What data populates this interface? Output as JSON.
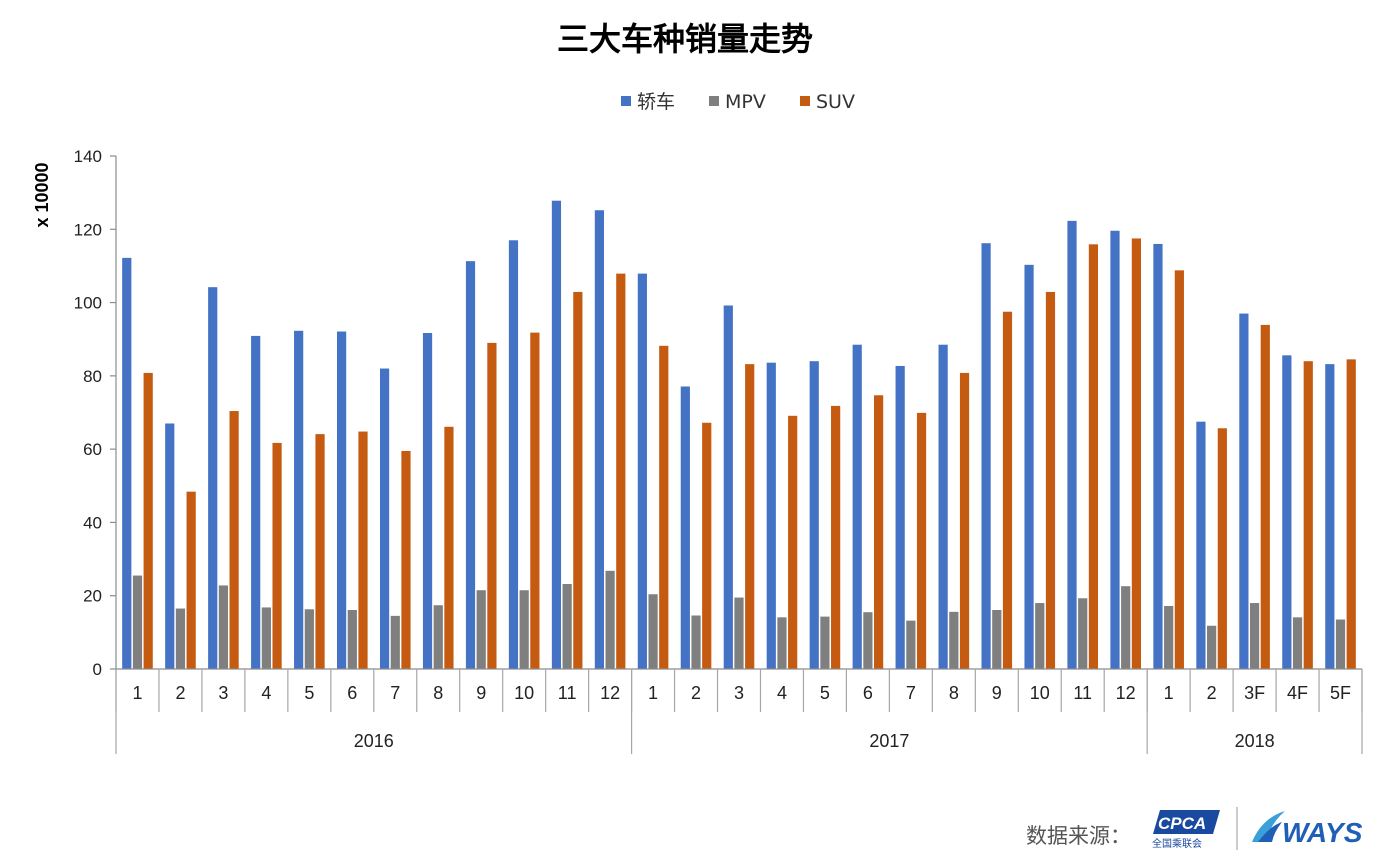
{
  "chart_data": {
    "type": "bar",
    "title": "三大车种销量走势",
    "ylabel": "x 10000",
    "ylim": [
      0,
      140
    ],
    "yticks": [
      0,
      20,
      40,
      60,
      80,
      100,
      120,
      140
    ],
    "legend_position": "top-center",
    "grid": false,
    "categories": [
      "1",
      "2",
      "3",
      "4",
      "5",
      "6",
      "7",
      "8",
      "9",
      "10",
      "11",
      "12",
      "1",
      "2",
      "3",
      "4",
      "5",
      "6",
      "7",
      "8",
      "9",
      "10",
      "11",
      "12",
      "1",
      "2",
      "3F",
      "4F",
      "5F"
    ],
    "groups": [
      {
        "label": "2016",
        "count": 12
      },
      {
        "label": "2017",
        "count": 12
      },
      {
        "label": "2018",
        "count": 5
      }
    ],
    "series": [
      {
        "name": "轿车",
        "color": "#4472c4",
        "values": [
          112.2,
          67.0,
          104.2,
          90.9,
          92.3,
          92.1,
          82.0,
          91.7,
          111.3,
          117.0,
          127.8,
          125.2,
          107.9,
          77.1,
          99.2,
          83.6,
          84.0,
          88.5,
          82.7,
          88.5,
          116.2,
          110.3,
          122.3,
          119.6,
          116.0,
          67.5,
          97.0,
          85.6,
          83.2
        ]
      },
      {
        "name": "MPV",
        "color": "#7f7f7f",
        "values": [
          25.5,
          16.5,
          22.8,
          16.8,
          16.3,
          16.1,
          14.5,
          17.4,
          21.5,
          21.5,
          23.2,
          26.8,
          20.4,
          14.6,
          19.5,
          14.1,
          14.3,
          15.5,
          13.2,
          15.6,
          16.1,
          18.0,
          19.3,
          22.6,
          17.2,
          11.8,
          18.0,
          14.1,
          13.5
        ]
      },
      {
        "name": "SUV",
        "color": "#c55a11",
        "values": [
          80.8,
          48.4,
          70.4,
          61.7,
          64.1,
          64.8,
          59.5,
          66.1,
          89.0,
          91.8,
          102.9,
          107.9,
          88.2,
          67.2,
          83.2,
          69.1,
          71.8,
          74.7,
          69.9,
          80.8,
          97.5,
          102.9,
          115.9,
          117.5,
          108.8,
          65.7,
          93.9,
          84.0,
          84.5
        ]
      }
    ]
  },
  "footer": {
    "source_label": "数据来源：",
    "logo_cpca": "CPCA",
    "logo_cpca_sub": "全国乘联会",
    "logo_ways": "WAYS"
  }
}
